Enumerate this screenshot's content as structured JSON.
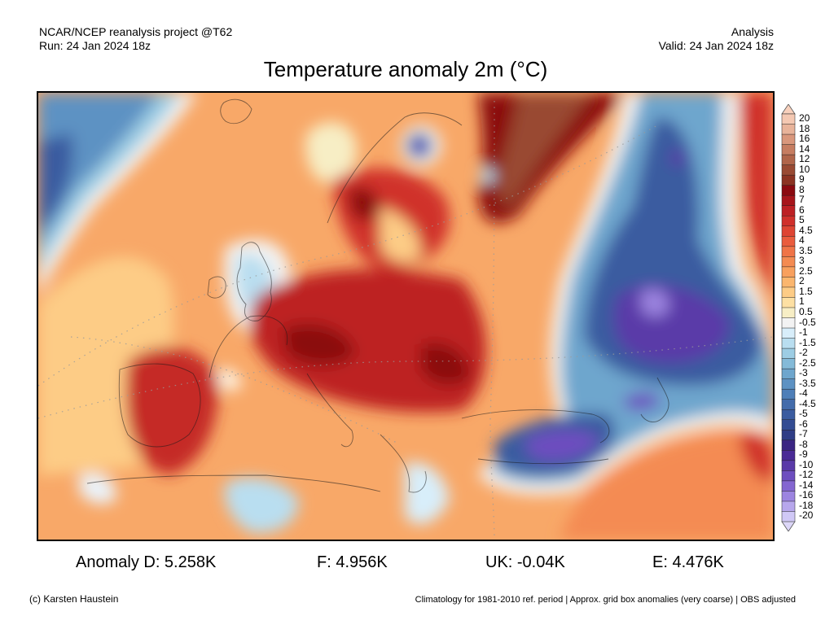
{
  "header": {
    "source": "NCAR/NCEP reanalysis project @T62",
    "run": "Run: 24 Jan 2024 18z",
    "type": "Analysis",
    "valid": "Valid: 24 Jan 2024 18z"
  },
  "title": "Temperature anomaly 2m (°C)",
  "colorbar": {
    "levels": [
      {
        "label": "20",
        "color": "#f4c8b2"
      },
      {
        "label": "18",
        "color": "#e8b39a"
      },
      {
        "label": "16",
        "color": "#d9977c"
      },
      {
        "label": "14",
        "color": "#c67d61"
      },
      {
        "label": "12",
        "color": "#b0654a"
      },
      {
        "label": "10",
        "color": "#994a33"
      },
      {
        "label": "9",
        "color": "#8c3322"
      },
      {
        "label": "8",
        "color": "#8b0a10"
      },
      {
        "label": "7",
        "color": "#a7151b"
      },
      {
        "label": "6",
        "color": "#bd2024"
      },
      {
        "label": "5",
        "color": "#d0302b"
      },
      {
        "label": "4.5",
        "color": "#de4533"
      },
      {
        "label": "4",
        "color": "#ea5c3d"
      },
      {
        "label": "3.5",
        "color": "#f07447"
      },
      {
        "label": "3",
        "color": "#f48b52"
      },
      {
        "label": "2.5",
        "color": "#f8a05e"
      },
      {
        "label": "2",
        "color": "#fbb66e"
      },
      {
        "label": "1.5",
        "color": "#fdcc86"
      },
      {
        "label": "1",
        "color": "#fde0a3"
      },
      {
        "label": "0.5",
        "color": "#f7eec5"
      },
      {
        "label": "-0.5",
        "color": "#f3f3f3"
      },
      {
        "label": "-1",
        "color": "#d8eefa"
      },
      {
        "label": "-1.5",
        "color": "#b9def0"
      },
      {
        "label": "-2",
        "color": "#9dcde4"
      },
      {
        "label": "-2.5",
        "color": "#84bad8"
      },
      {
        "label": "-3",
        "color": "#6ea6cd"
      },
      {
        "label": "-3.5",
        "color": "#5d92c3"
      },
      {
        "label": "-4",
        "color": "#4e7fb8"
      },
      {
        "label": "-4.5",
        "color": "#436cab"
      },
      {
        "label": "-5",
        "color": "#3b5ca0"
      },
      {
        "label": "-6",
        "color": "#334c93"
      },
      {
        "label": "-7",
        "color": "#2f3d86"
      },
      {
        "label": "-8",
        "color": "#3a2583"
      },
      {
        "label": "-9",
        "color": "#4a2a96"
      },
      {
        "label": "-10",
        "color": "#5a3aa8"
      },
      {
        "label": "-12",
        "color": "#6d4ebf"
      },
      {
        "label": "-14",
        "color": "#8466d1"
      },
      {
        "label": "-16",
        "color": "#9c84e0"
      },
      {
        "label": "-18",
        "color": "#b7a7ec"
      },
      {
        "label": "-20",
        "color": "#d0c8f6"
      }
    ],
    "over_color": "#f8d0bc",
    "under_color": "#dcd6f8"
  },
  "stats": {
    "de": "Anomaly D: 5.258K",
    "fr": "F: 4.956K",
    "uk": "UK: -0.04K",
    "es": "E: 4.476K"
  },
  "footer": {
    "credit": "(c) Karsten Haustein",
    "note": "Climatology for 1981-2010 ref. period | Approx. grid box anomalies (very coarse) | OBS adjusted"
  }
}
